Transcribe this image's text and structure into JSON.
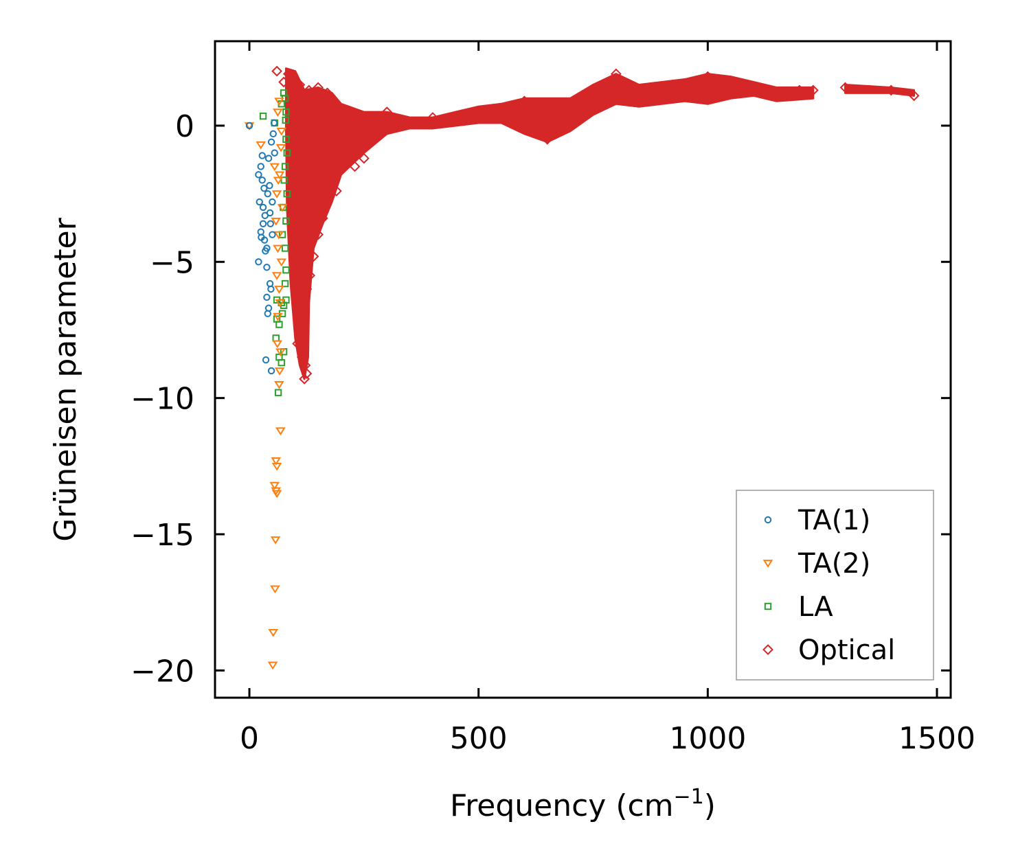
{
  "chart_data": {
    "type": "scatter",
    "title": "",
    "xlabel": "Frequency (cm",
    "xlabel_superscript": "−1",
    "xlabel_close": ")",
    "ylabel": "Grüneisen parameter",
    "xlim": [
      -75,
      1530
    ],
    "ylim": [
      -21,
      3.1
    ],
    "xticks": [
      0,
      500,
      1000,
      1500
    ],
    "xtick_labels": [
      "0",
      "500",
      "1000",
      "1500"
    ],
    "yticks": [
      0,
      -5,
      -10,
      -15,
      -20
    ],
    "ytick_labels": [
      "0",
      "−5",
      "−10",
      "−15",
      "−20"
    ],
    "grid": false,
    "legend_position": "lower-right",
    "series": [
      {
        "name": "TA(1)",
        "marker": "circle",
        "color": "#1f77b4",
        "points": [
          [
            0,
            0
          ],
          [
            20,
            -1.8
          ],
          [
            25,
            -1.5
          ],
          [
            28,
            -2.0
          ],
          [
            22,
            -2.8
          ],
          [
            30,
            -3.0
          ],
          [
            25,
            -3.9
          ],
          [
            30,
            -3.6
          ],
          [
            20,
            -5.0
          ],
          [
            33,
            -4.2
          ],
          [
            35,
            -4.6
          ],
          [
            38,
            -5.2
          ],
          [
            45,
            -5.8
          ],
          [
            47,
            -6.0
          ],
          [
            38,
            -6.3
          ],
          [
            42,
            -6.7
          ],
          [
            40,
            -6.9
          ],
          [
            36,
            -8.6
          ],
          [
            48,
            -9.0
          ],
          [
            40,
            -2.5
          ],
          [
            45,
            -3.2
          ],
          [
            50,
            -4.0
          ],
          [
            42,
            -1.2
          ],
          [
            48,
            -0.6
          ],
          [
            52,
            -0.3
          ],
          [
            55,
            -1.0
          ],
          [
            44,
            -2.2
          ],
          [
            50,
            -2.8
          ],
          [
            46,
            -3.6
          ],
          [
            54,
            0.1
          ],
          [
            38,
            -4.5
          ],
          [
            34,
            -3.3
          ],
          [
            26,
            -4.1
          ],
          [
            32,
            -2.3
          ],
          [
            28,
            -1.1
          ]
        ]
      },
      {
        "name": "TA(2)",
        "marker": "triangle-down",
        "color": "#ff7f0e",
        "points": [
          [
            0,
            0
          ],
          [
            25,
            -0.7
          ],
          [
            55,
            -1.5
          ],
          [
            60,
            -2.5
          ],
          [
            58,
            -3.5
          ],
          [
            62,
            -4.5
          ],
          [
            60,
            -5.5
          ],
          [
            65,
            -6.0
          ],
          [
            62,
            -7.0
          ],
          [
            68,
            -8.3
          ],
          [
            66,
            -9.0
          ],
          [
            65,
            -9.5
          ],
          [
            68,
            -11.2
          ],
          [
            58,
            -12.3
          ],
          [
            60,
            -12.5
          ],
          [
            55,
            -13.2
          ],
          [
            58,
            -13.4
          ],
          [
            60,
            -13.5
          ],
          [
            57,
            -15.2
          ],
          [
            56,
            -17.0
          ],
          [
            52,
            -18.6
          ],
          [
            51,
            -19.8
          ],
          [
            62,
            0.5
          ],
          [
            65,
            0.9
          ],
          [
            70,
            -0.2
          ],
          [
            66,
            -1.8
          ],
          [
            72,
            -3.0
          ],
          [
            64,
            -4.0
          ],
          [
            70,
            -5.0
          ],
          [
            67,
            -6.5
          ],
          [
            61,
            -8.0
          ],
          [
            63,
            -2.0
          ],
          [
            69,
            -0.8
          ]
        ]
      },
      {
        "name": "LA",
        "marker": "square",
        "color": "#2ca02c",
        "points": [
          [
            30,
            0.35
          ],
          [
            55,
            0.1
          ],
          [
            70,
            0.8
          ],
          [
            75,
            1.2
          ],
          [
            78,
            1.0
          ],
          [
            80,
            0.5
          ],
          [
            80,
            -0.5
          ],
          [
            78,
            -1.5
          ],
          [
            82,
            -2.5
          ],
          [
            80,
            -3.5
          ],
          [
            78,
            -4.5
          ],
          [
            80,
            -5.3
          ],
          [
            78,
            -5.8
          ],
          [
            60,
            -6.4
          ],
          [
            70,
            -6.5
          ],
          [
            75,
            -6.6
          ],
          [
            80,
            -6.4
          ],
          [
            72,
            -6.9
          ],
          [
            60,
            -7.1
          ],
          [
            65,
            -7.3
          ],
          [
            58,
            -7.8
          ],
          [
            65,
            -8.5
          ],
          [
            70,
            -8.7
          ],
          [
            75,
            -8.3
          ],
          [
            63,
            -9.8
          ],
          [
            76,
            -2.0
          ],
          [
            74,
            -3.0
          ],
          [
            72,
            -4.0
          ],
          [
            82,
            -1.0
          ],
          [
            79,
            0.2
          ]
        ]
      },
      {
        "name": "Optical",
        "marker": "diamond",
        "color": "#d62728",
        "band_upper": [
          [
            80,
            2.1
          ],
          [
            100,
            2.0
          ],
          [
            120,
            1.3
          ],
          [
            150,
            1.4
          ],
          [
            180,
            1.2
          ],
          [
            200,
            0.8
          ],
          [
            250,
            0.5
          ],
          [
            300,
            0.5
          ],
          [
            350,
            0.3
          ],
          [
            400,
            0.3
          ],
          [
            450,
            0.5
          ],
          [
            500,
            0.7
          ],
          [
            550,
            0.8
          ],
          [
            600,
            1.0
          ],
          [
            650,
            1.0
          ],
          [
            700,
            1.0
          ],
          [
            750,
            1.5
          ],
          [
            800,
            1.9
          ],
          [
            850,
            1.5
          ],
          [
            900,
            1.6
          ],
          [
            950,
            1.7
          ],
          [
            1000,
            1.9
          ],
          [
            1050,
            1.8
          ],
          [
            1100,
            1.6
          ],
          [
            1150,
            1.4
          ],
          [
            1230,
            1.4
          ]
        ],
        "band_lower": [
          [
            1230,
            1.0
          ],
          [
            1150,
            0.9
          ],
          [
            1100,
            1.1
          ],
          [
            1050,
            1.0
          ],
          [
            1000,
            0.8
          ],
          [
            950,
            0.9
          ],
          [
            900,
            0.8
          ],
          [
            850,
            0.7
          ],
          [
            800,
            0.8
          ],
          [
            750,
            0.4
          ],
          [
            700,
            -0.2
          ],
          [
            650,
            -0.6
          ],
          [
            600,
            -0.3
          ],
          [
            550,
            0.1
          ],
          [
            500,
            0.1
          ],
          [
            450,
            0.0
          ],
          [
            400,
            -0.1
          ],
          [
            350,
            -0.1
          ],
          [
            300,
            -0.3
          ],
          [
            250,
            -1.0
          ],
          [
            200,
            -1.8
          ],
          [
            180,
            -2.8
          ],
          [
            160,
            -3.6
          ],
          [
            140,
            -4.5
          ],
          [
            130,
            -6.5
          ],
          [
            128,
            -8.5
          ],
          [
            120,
            -9.3
          ],
          [
            110,
            -8.8
          ],
          [
            100,
            -7.8
          ],
          [
            90,
            -5.8
          ],
          [
            82,
            -3.0
          ],
          [
            80,
            0.0
          ]
        ],
        "band2_upper": [
          [
            1300,
            1.5
          ],
          [
            1400,
            1.4
          ],
          [
            1450,
            1.3
          ]
        ],
        "band2_lower": [
          [
            1450,
            1.1
          ],
          [
            1400,
            1.2
          ],
          [
            1300,
            1.2
          ]
        ],
        "points": [
          [
            60,
            2.0
          ],
          [
            75,
            1.6
          ],
          [
            85,
            1.9
          ],
          [
            95,
            1.8
          ],
          [
            110,
            1.5
          ],
          [
            130,
            1.3
          ],
          [
            150,
            1.4
          ],
          [
            170,
            1.2
          ],
          [
            200,
            -0.8
          ],
          [
            230,
            -1.5
          ],
          [
            250,
            -1.2
          ],
          [
            190,
            -2.4
          ],
          [
            175,
            -2.6
          ],
          [
            160,
            -3.4
          ],
          [
            150,
            -4.0
          ],
          [
            140,
            -4.8
          ],
          [
            132,
            -5.5
          ],
          [
            125,
            -6.0
          ],
          [
            118,
            -7.0
          ],
          [
            112,
            -7.5
          ],
          [
            105,
            -8.0
          ],
          [
            115,
            -8.5
          ],
          [
            122,
            -8.8
          ],
          [
            120,
            -9.3
          ],
          [
            125,
            -9.1
          ],
          [
            95,
            -4.3
          ],
          [
            100,
            -5.3
          ],
          [
            108,
            -6.5
          ],
          [
            90,
            -2.5
          ],
          [
            100,
            -3.8
          ],
          [
            300,
            0.5
          ],
          [
            400,
            0.3
          ],
          [
            600,
            0.9
          ],
          [
            650,
            -0.5
          ],
          [
            720,
            1.0
          ],
          [
            800,
            1.9
          ],
          [
            1000,
            1.8
          ],
          [
            1200,
            1.3
          ],
          [
            1230,
            1.3
          ],
          [
            1300,
            1.4
          ],
          [
            1400,
            1.3
          ],
          [
            1450,
            1.1
          ]
        ]
      }
    ]
  }
}
